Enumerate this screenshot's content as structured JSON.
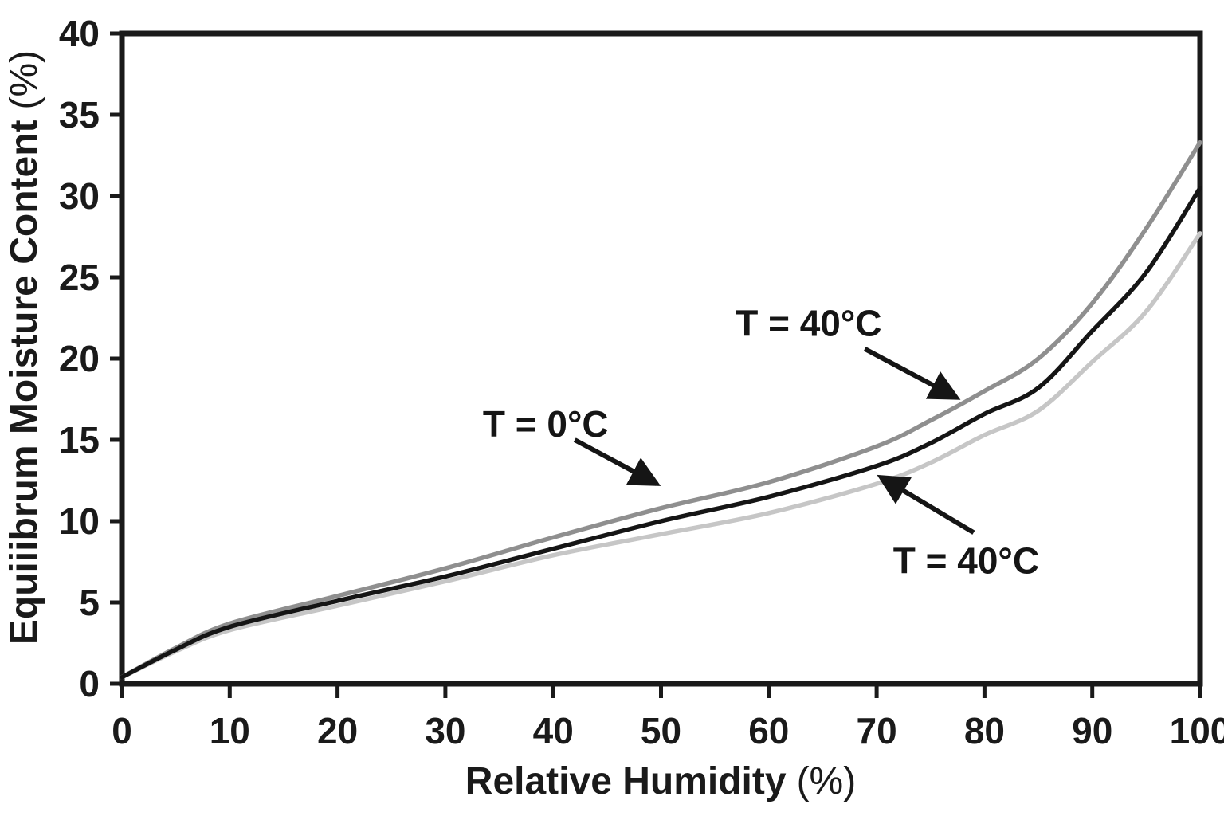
{
  "figure": {
    "background": "#ffffff",
    "axis_color": "#1a1a1a",
    "text_color": "#1a1a1a"
  },
  "chart_data": {
    "type": "line",
    "title": "",
    "xlabel": "Relative Humidity",
    "xlabel_unit": "(%)",
    "ylabel": "Equiiibrum Moisture Content",
    "ylabel_unit": "(%)",
    "xlim": [
      0,
      100
    ],
    "ylim": [
      0,
      40
    ],
    "x_ticks": [
      0,
      10,
      20,
      30,
      40,
      50,
      60,
      70,
      80,
      90,
      100
    ],
    "y_ticks": [
      0,
      5,
      10,
      15,
      20,
      25,
      30,
      35,
      40
    ],
    "grid": false,
    "legend_position": "none",
    "x": [
      0,
      5,
      10,
      20,
      30,
      40,
      50,
      60,
      70,
      75,
      80,
      85,
      90,
      95,
      100
    ],
    "series": [
      {
        "name": "T = 40°C (upper curve)",
        "color": "#8f8f8f",
        "values": [
          0.4,
          2.2,
          3.7,
          5.4,
          7.1,
          9.0,
          10.8,
          12.4,
          14.6,
          16.2,
          18.0,
          20.0,
          23.4,
          28.0,
          33.3
        ]
      },
      {
        "name": "T = 0°C (middle curve)",
        "color": "#151515",
        "values": [
          0.4,
          2.1,
          3.5,
          5.1,
          6.6,
          8.3,
          10.0,
          11.5,
          13.4,
          14.8,
          16.6,
          18.2,
          21.7,
          25.3,
          30.5
        ]
      },
      {
        "name": "T = 40°C (lower curve)",
        "color": "#c6c6c6",
        "values": [
          0.4,
          2.0,
          3.3,
          4.8,
          6.3,
          7.9,
          9.2,
          10.5,
          12.3,
          13.6,
          15.3,
          16.8,
          19.8,
          22.9,
          27.7
        ]
      }
    ],
    "annotations": [
      {
        "label": "T = 40°C",
        "label_x": 63.7,
        "label_y": 21.4,
        "arrow_from": [
          68.9,
          20.6
        ],
        "arrow_to": [
          77.4,
          17.6
        ]
      },
      {
        "label": "T = 0°C",
        "label_x": 39.3,
        "label_y": 15.2,
        "arrow_from": [
          42.0,
          15.0
        ],
        "arrow_to": [
          49.6,
          12.3
        ]
      },
      {
        "label": "T = 40°C",
        "label_x": 78.3,
        "label_y": 6.8,
        "arrow_from": [
          79.0,
          9.3
        ],
        "arrow_to": [
          70.4,
          12.7
        ]
      }
    ]
  }
}
